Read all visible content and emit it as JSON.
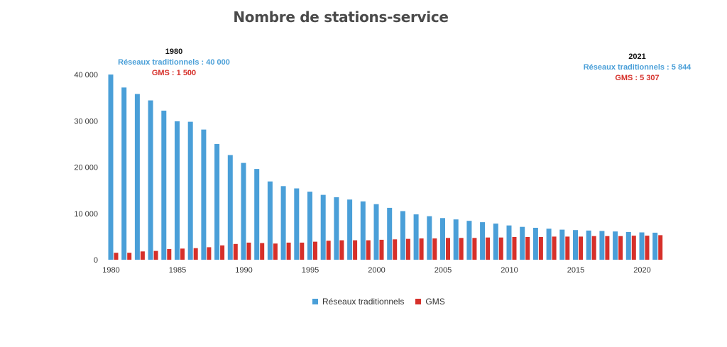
{
  "chart_data": {
    "type": "bar",
    "title": "Nombre de stations-service",
    "xlabel": "",
    "ylabel": "",
    "ylim": [
      0,
      40000
    ],
    "y_ticks": [
      "0",
      "10 000",
      "20 000",
      "30 000",
      "40 000"
    ],
    "y_tick_values": [
      0,
      10000,
      20000,
      30000,
      40000
    ],
    "x_tick_labels": [
      "1980",
      "1985",
      "1990",
      "1995",
      "2000",
      "2005",
      "2010",
      "2015",
      "2020"
    ],
    "categories": [
      1980,
      1981,
      1982,
      1983,
      1984,
      1985,
      1986,
      1987,
      1988,
      1989,
      1990,
      1991,
      1992,
      1993,
      1994,
      1995,
      1996,
      1997,
      1998,
      1999,
      2000,
      2001,
      2002,
      2003,
      2004,
      2005,
      2006,
      2007,
      2008,
      2009,
      2010,
      2011,
      2012,
      2013,
      2014,
      2015,
      2016,
      2017,
      2018,
      2019,
      2020,
      2021
    ],
    "series": [
      {
        "name": "Réseaux traditionnels",
        "color": "#4a9fd8",
        "values": [
          40000,
          37200,
          35800,
          34400,
          32200,
          29900,
          29800,
          28100,
          25000,
          22600,
          20900,
          19600,
          16900,
          15900,
          15400,
          14700,
          14000,
          13500,
          13000,
          12600,
          12000,
          11200,
          10500,
          9800,
          9400,
          9000,
          8700,
          8400,
          8100,
          7800,
          7400,
          7100,
          6900,
          6700,
          6500,
          6400,
          6300,
          6200,
          6100,
          6000,
          5900,
          5844
        ]
      },
      {
        "name": "GMS",
        "color": "#d6302a",
        "values": [
          1500,
          1500,
          1800,
          1900,
          2300,
          2400,
          2500,
          2700,
          3100,
          3400,
          3700,
          3600,
          3500,
          3700,
          3700,
          3900,
          4100,
          4200,
          4200,
          4200,
          4300,
          4400,
          4500,
          4600,
          4600,
          4700,
          4700,
          4700,
          4800,
          4800,
          4900,
          4900,
          4900,
          5000,
          5000,
          5000,
          5100,
          5100,
          5100,
          5200,
          5200,
          5307
        ]
      }
    ],
    "grid": false,
    "legend_position": "bottom"
  },
  "annotations": {
    "start": {
      "year": "1980",
      "traditional": "Réseaux traditionnels : 40 000",
      "gms": "GMS : 1 500"
    },
    "end": {
      "year": "2021",
      "traditional": "Réseaux traditionnels : 5 844",
      "gms": "GMS : 5 307"
    }
  }
}
